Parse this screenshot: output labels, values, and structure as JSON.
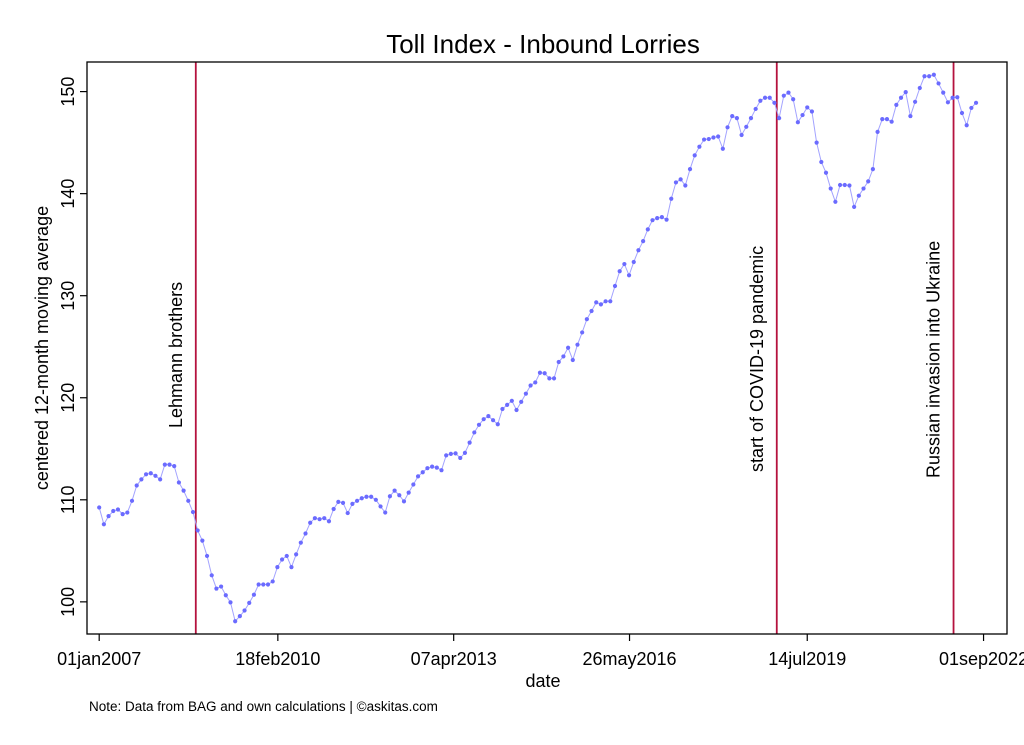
{
  "chart_data": {
    "type": "line",
    "title": "Toll Index - Inbound Lorries",
    "xlabel": "date",
    "ylabel": "centered 12-month moving average",
    "note": "Note: Data from BAG and own calculations | ©askitas.com",
    "x_unit": "months since 01jan2007",
    "xlim": [
      -2.6,
      193.6
    ],
    "ylim": [
      96.85,
      152.9
    ],
    "y_ticks": [
      100,
      110,
      120,
      130,
      140,
      150
    ],
    "x_ticks": [
      {
        "value": 0,
        "label": "01jan2007"
      },
      {
        "value": 38.1,
        "label": "18feb2010"
      },
      {
        "value": 75.6,
        "label": "07apr2013"
      },
      {
        "value": 113.1,
        "label": "26may2016"
      },
      {
        "value": 151.0,
        "label": "14jul2019"
      },
      {
        "value": 188.6,
        "label": "01sep2022"
      }
    ],
    "events": [
      {
        "x": 20.6,
        "label": "Lehmann brothers"
      },
      {
        "x": 144.5,
        "label": "start of COVID-19 pandemic"
      },
      {
        "x": 182.2,
        "label": "Russian invasion into Ukraine"
      }
    ],
    "series": [
      {
        "name": "Toll Index",
        "color": "#6b6bff",
        "line_color": "#a3a3ff",
        "values": [
          109.25,
          107.6,
          108.4,
          108.9,
          109.05,
          108.6,
          108.75,
          109.9,
          111.4,
          112.0,
          112.5,
          112.6,
          112.35,
          112.0,
          113.45,
          113.45,
          113.3,
          111.7,
          110.9,
          109.9,
          108.8,
          107.0,
          106.0,
          104.5,
          102.6,
          101.3,
          101.5,
          100.65,
          99.95,
          98.1,
          98.6,
          99.15,
          99.9,
          100.7,
          101.7,
          101.7,
          101.7,
          102.0,
          103.4,
          104.15,
          104.5,
          103.4,
          104.65,
          105.8,
          106.7,
          107.75,
          108.2,
          108.1,
          108.2,
          107.9,
          109.1,
          109.8,
          109.7,
          108.7,
          109.6,
          109.9,
          110.15,
          110.3,
          110.3,
          110.0,
          109.35,
          108.75,
          110.35,
          110.9,
          110.45,
          109.85,
          110.7,
          111.5,
          112.3,
          112.7,
          113.1,
          113.25,
          113.15,
          112.9,
          114.35,
          114.5,
          114.55,
          114.1,
          114.6,
          115.6,
          116.6,
          117.35,
          117.9,
          118.2,
          117.8,
          117.4,
          118.9,
          119.3,
          119.7,
          118.8,
          119.6,
          120.4,
          121.2,
          121.5,
          122.45,
          122.4,
          121.9,
          121.9,
          123.5,
          124.05,
          124.9,
          123.7,
          125.2,
          126.4,
          127.7,
          128.5,
          129.35,
          129.15,
          129.45,
          129.45,
          130.95,
          132.4,
          133.1,
          132.0,
          133.3,
          134.45,
          135.35,
          136.5,
          137.4,
          137.6,
          137.7,
          137.45,
          139.5,
          141.1,
          141.4,
          140.8,
          142.4,
          143.75,
          144.6,
          145.3,
          145.35,
          145.5,
          145.6,
          144.4,
          146.5,
          147.6,
          147.4,
          145.75,
          146.55,
          147.4,
          148.3,
          149.1,
          149.4,
          149.4,
          148.9,
          147.4,
          149.6,
          149.9,
          149.25,
          147.0,
          147.7,
          148.45,
          148.05,
          145.0,
          143.1,
          142.05,
          140.5,
          139.2,
          140.85,
          140.85,
          140.8,
          138.7,
          139.8,
          140.5,
          141.2,
          142.4,
          146.05,
          147.3,
          147.3,
          147.05,
          148.7,
          149.4,
          149.95,
          147.6,
          149.0,
          150.35,
          151.5,
          151.5,
          151.65,
          150.8,
          149.9,
          148.95,
          149.4,
          149.45,
          147.9,
          146.7,
          148.4,
          148.9
        ]
      }
    ],
    "event_color": "#b5123e",
    "grid": false,
    "legend": "none"
  }
}
